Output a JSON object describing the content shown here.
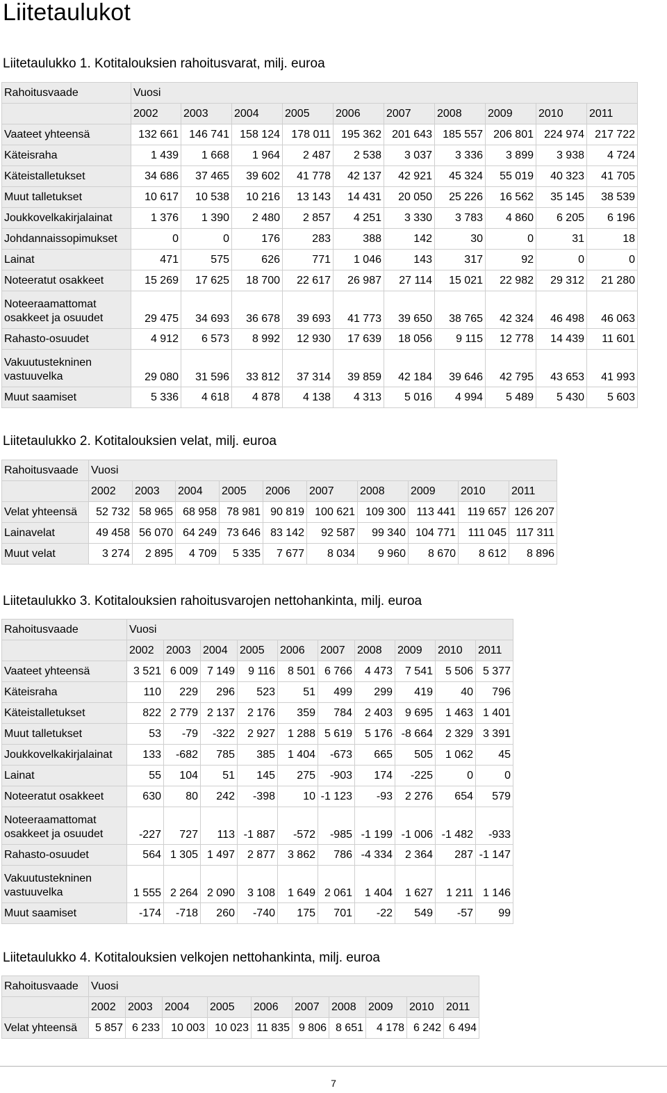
{
  "page_title": "Liitetaulukot",
  "tables": [
    {
      "title": "Liitetaulukko 1. Kotitalouksien rahoitusvarat, milj. euroa",
      "header_label": "Rahoitusvaade",
      "year_label": "Vuosi",
      "years": [
        "2002",
        "2003",
        "2004",
        "2005",
        "2006",
        "2007",
        "2008",
        "2009",
        "2010",
        "2011"
      ],
      "rows": [
        {
          "label": "Vaateet yhteensä",
          "values": [
            "132 661",
            "146 741",
            "158 124",
            "178 011",
            "195 362",
            "201 643",
            "185 557",
            "206 801",
            "224 974",
            "217 722"
          ]
        },
        {
          "label": "Käteisraha",
          "values": [
            "1 439",
            "1 668",
            "1 964",
            "2 487",
            "2 538",
            "3 037",
            "3 336",
            "3 899",
            "3 938",
            "4 724"
          ]
        },
        {
          "label": "Käteistalletukset",
          "values": [
            "34 686",
            "37 465",
            "39 602",
            "41 778",
            "42 137",
            "42 921",
            "45 324",
            "55 019",
            "40 323",
            "41 705"
          ]
        },
        {
          "label": "Muut talletukset",
          "values": [
            "10 617",
            "10 538",
            "10 216",
            "13 143",
            "14 431",
            "20 050",
            "25 226",
            "16 562",
            "35 145",
            "38 539"
          ]
        },
        {
          "label": "Joukkovelkakirjalainat",
          "values": [
            "1 376",
            "1 390",
            "2 480",
            "2 857",
            "4 251",
            "3 330",
            "3 783",
            "4 860",
            "6 205",
            "6 196"
          ]
        },
        {
          "label": "Johdannaissopimukset",
          "values": [
            "0",
            "0",
            "176",
            "283",
            "388",
            "142",
            "30",
            "0",
            "31",
            "18"
          ]
        },
        {
          "label": "Lainat",
          "values": [
            "471",
            "575",
            "626",
            "771",
            "1 046",
            "143",
            "317",
            "92",
            "0",
            "0"
          ]
        },
        {
          "label": "Noteeratut osakkeet",
          "values": [
            "15 269",
            "17 625",
            "18 700",
            "22 617",
            "26 987",
            "27 114",
            "15 021",
            "22 982",
            "29 312",
            "21 280"
          ]
        },
        {
          "label": "Noteeraamattomat",
          "label2": "osakkeet ja osuudet",
          "values": [
            "29 475",
            "34 693",
            "36 678",
            "39 693",
            "41 773",
            "39 650",
            "38 765",
            "42 324",
            "46 498",
            "46 063"
          ]
        },
        {
          "label": "Rahasto-osuudet",
          "values": [
            "4 912",
            "6 573",
            "8 992",
            "12 930",
            "17 639",
            "18 056",
            "9 115",
            "12 778",
            "14 439",
            "11 601"
          ]
        },
        {
          "label": "Vakuutustekninen",
          "label2": "vastuuvelka",
          "values": [
            "29 080",
            "31 596",
            "33 812",
            "37 314",
            "39 859",
            "42 184",
            "39 646",
            "42 795",
            "43 653",
            "41 993"
          ]
        },
        {
          "label": "Muut saamiset",
          "values": [
            "5 336",
            "4 618",
            "4 878",
            "4 138",
            "4 313",
            "5 016",
            "4 994",
            "5 489",
            "5 430",
            "5 603"
          ]
        }
      ]
    },
    {
      "title": "Liitetaulukko 2. Kotitalouksien velat, milj. euroa",
      "header_label": "Rahoitusvaade",
      "year_label": "Vuosi",
      "years": [
        "2002",
        "2003",
        "2004",
        "2005",
        "2006",
        "2007",
        "2008",
        "2009",
        "2010",
        "2011"
      ],
      "rows": [
        {
          "label": "Velat yhteensä",
          "values": [
            "52 732",
            "58 965",
            "68 958",
            "78 981",
            "90 819",
            "100 621",
            "109 300",
            "113 441",
            "119 657",
            "126 207"
          ]
        },
        {
          "label": "Lainavelat",
          "values": [
            "49 458",
            "56 070",
            "64 249",
            "73 646",
            "83 142",
            "92 587",
            "99 340",
            "104 771",
            "111 045",
            "117 311"
          ]
        },
        {
          "label": "Muut velat",
          "values": [
            "3 274",
            "2 895",
            "4 709",
            "5 335",
            "7 677",
            "8 034",
            "9 960",
            "8 670",
            "8 612",
            "8 896"
          ]
        }
      ]
    },
    {
      "title": "Liitetaulukko 3. Kotitalouksien rahoitusvarojen nettohankinta, milj. euroa",
      "header_label": "Rahoitusvaade",
      "year_label": "Vuosi",
      "years": [
        "2002",
        "2003",
        "2004",
        "2005",
        "2006",
        "2007",
        "2008",
        "2009",
        "2010",
        "2011"
      ],
      "rows": [
        {
          "label": "Vaateet yhteensä",
          "values": [
            "3 521",
            "6 009",
            "7 149",
            "9 116",
            "8 501",
            "6 766",
            "4 473",
            "7 541",
            "5 506",
            "5 377"
          ]
        },
        {
          "label": "Käteisraha",
          "values": [
            "110",
            "229",
            "296",
            "523",
            "51",
            "499",
            "299",
            "419",
            "40",
            "796"
          ]
        },
        {
          "label": "Käteistalletukset",
          "values": [
            "822",
            "2 779",
            "2 137",
            "2 176",
            "359",
            "784",
            "2 403",
            "9 695",
            "1 463",
            "1 401"
          ]
        },
        {
          "label": "Muut talletukset",
          "values": [
            "53",
            "-79",
            "-322",
            "2 927",
            "1 288",
            "5 619",
            "5 176",
            "-8 664",
            "2 329",
            "3 391"
          ]
        },
        {
          "label": "Joukkovelkakirjalainat",
          "values": [
            "133",
            "-682",
            "785",
            "385",
            "1 404",
            "-673",
            "665",
            "505",
            "1 062",
            "45"
          ]
        },
        {
          "label": "Lainat",
          "values": [
            "55",
            "104",
            "51",
            "145",
            "275",
            "-903",
            "174",
            "-225",
            "0",
            "0"
          ]
        },
        {
          "label": "Noteeratut osakkeet",
          "values": [
            "630",
            "80",
            "242",
            "-398",
            "10",
            "-1 123",
            "-93",
            "2 276",
            "654",
            "579"
          ]
        },
        {
          "label": "Noteeraamattomat",
          "label2": "osakkeet ja osuudet",
          "values": [
            "-227",
            "727",
            "113",
            "-1 887",
            "-572",
            "-985",
            "-1 199",
            "-1 006",
            "-1 482",
            "-933"
          ]
        },
        {
          "label": "Rahasto-osuudet",
          "values": [
            "564",
            "1 305",
            "1 497",
            "2 877",
            "3 862",
            "786",
            "-4 334",
            "2 364",
            "287",
            "-1 147"
          ]
        },
        {
          "label": "Vakuutustekninen",
          "label2": "vastuuvelka",
          "values": [
            "1 555",
            "2 264",
            "2 090",
            "3 108",
            "1 649",
            "2 061",
            "1 404",
            "1 627",
            "1 211",
            "1 146"
          ]
        },
        {
          "label": "Muut saamiset",
          "values": [
            "-174",
            "-718",
            "260",
            "-740",
            "175",
            "701",
            "-22",
            "549",
            "-57",
            "99"
          ]
        }
      ]
    },
    {
      "title": "Liitetaulukko 4. Kotitalouksien velkojen nettohankinta, milj. euroa",
      "header_label": "Rahoitusvaade",
      "year_label": "Vuosi",
      "years": [
        "2002",
        "2003",
        "2004",
        "2005",
        "2006",
        "2007",
        "2008",
        "2009",
        "2010",
        "2011"
      ],
      "rows": [
        {
          "label": "Velat yhteensä",
          "values": [
            "5 857",
            "6 233",
            "10 003",
            "10 023",
            "11 835",
            "9 806",
            "8 651",
            "4 178",
            "6 242",
            "6 494"
          ]
        }
      ]
    }
  ],
  "page_number": "7"
}
